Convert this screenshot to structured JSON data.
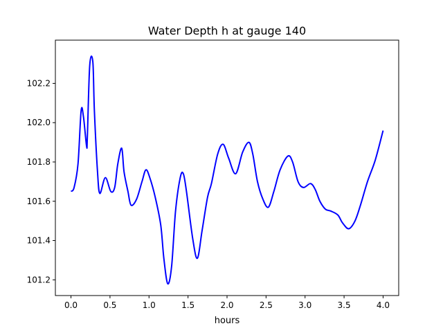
{
  "chart_data": {
    "type": "line",
    "title": "Water Depth h at gauge 140",
    "xlabel": "hours",
    "ylabel": "",
    "xlim": [
      -0.2,
      4.2
    ],
    "ylim": [
      101.12,
      102.42
    ],
    "xticks": [
      0.0,
      0.5,
      1.0,
      1.5,
      2.0,
      2.5,
      3.0,
      3.5,
      4.0
    ],
    "xtick_labels": [
      "0.0",
      "0.5",
      "1.0",
      "1.5",
      "2.0",
      "2.5",
      "3.0",
      "3.5",
      "4.0"
    ],
    "yticks": [
      101.2,
      101.4,
      101.6,
      101.8,
      102.0,
      102.2
    ],
    "ytick_labels": [
      "101.2",
      "101.4",
      "101.6",
      "101.8",
      "102.0",
      "102.2"
    ],
    "grid": false,
    "series": [
      {
        "name": "h",
        "color": "#0000ff",
        "x": [
          0,
          0.04,
          0.09,
          0.13,
          0.16,
          0.2,
          0.21,
          0.24,
          0.28,
          0.3,
          0.34,
          0.37,
          0.44,
          0.51,
          0.56,
          0.6,
          0.65,
          0.68,
          0.73,
          0.77,
          0.84,
          0.91,
          0.96,
          1.01,
          1.08,
          1.15,
          1.19,
          1.24,
          1.29,
          1.34,
          1.4,
          1.44,
          1.48,
          1.56,
          1.62,
          1.68,
          1.75,
          1.8,
          1.88,
          1.95,
          2.02,
          2.11,
          2.2,
          2.28,
          2.33,
          2.39,
          2.46,
          2.53,
          2.6,
          2.68,
          2.78,
          2.84,
          2.91,
          2.98,
          3.07,
          3.13,
          3.19,
          3.26,
          3.33,
          3.42,
          3.48,
          3.56,
          3.64,
          3.71,
          3.8,
          3.9,
          4.0
        ],
        "y": [
          101.65,
          101.67,
          101.79,
          102.06,
          102.03,
          101.88,
          101.93,
          102.29,
          102.31,
          102.06,
          101.75,
          101.64,
          101.72,
          101.65,
          101.67,
          101.79,
          101.87,
          101.75,
          101.65,
          101.58,
          101.61,
          101.7,
          101.76,
          101.72,
          101.62,
          101.48,
          101.31,
          101.18,
          101.27,
          101.55,
          101.72,
          101.74,
          101.65,
          101.41,
          101.31,
          101.45,
          101.62,
          101.69,
          101.84,
          101.89,
          101.82,
          101.74,
          101.85,
          101.9,
          101.84,
          101.7,
          101.61,
          101.57,
          101.65,
          101.76,
          101.83,
          101.8,
          101.7,
          101.67,
          101.69,
          101.66,
          101.6,
          101.56,
          101.55,
          101.53,
          101.49,
          101.46,
          101.5,
          101.58,
          101.7,
          101.81,
          101.96
        ]
      }
    ]
  }
}
